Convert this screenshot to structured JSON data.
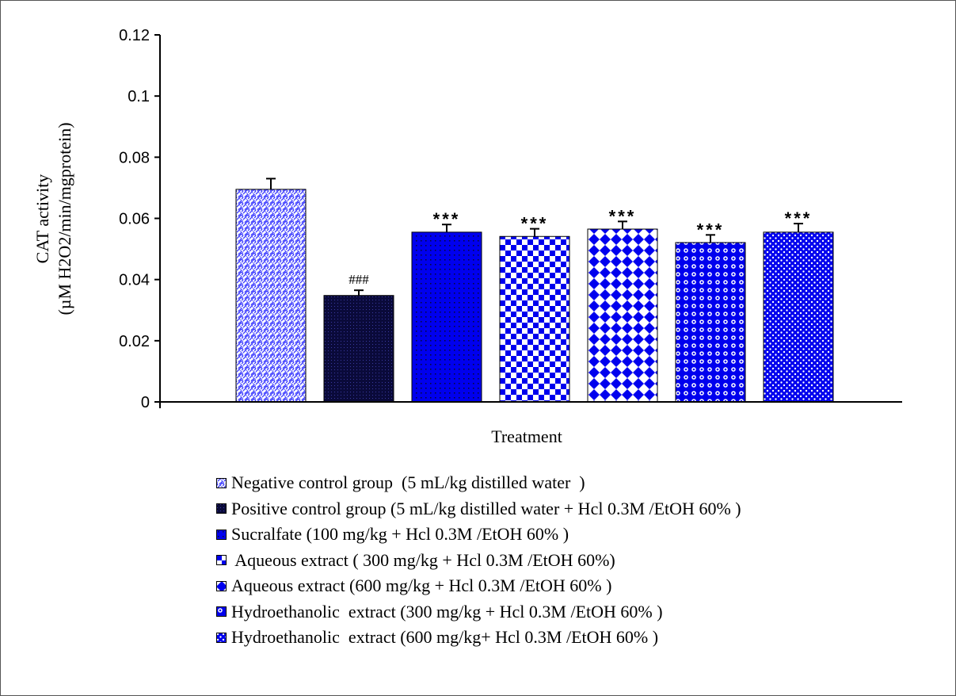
{
  "chart_data": {
    "type": "bar",
    "xlabel": "Treatment",
    "ylabel_line1": "CAT activity",
    "ylabel_line2": "(µM H2O2/min/mgprotein)",
    "ylim": [
      0,
      0.12
    ],
    "yticks": [
      "0",
      "0.02",
      "0.04",
      "0.06",
      "0.08",
      "0.1",
      "0.12"
    ],
    "grid": false,
    "legend_position": "bottom",
    "series": [
      {
        "name": "Negative control group  (5 mL/kg distilled water  )",
        "value": 0.0695,
        "error": 0.0035,
        "annotation": "",
        "pattern": "weave",
        "color": "#3b3bff"
      },
      {
        "name": "Positive control group (5 mL/kg distilled water + Hcl 0.3M /EtOH 60% )",
        "value": 0.0348,
        "error": 0.0017,
        "annotation": "###",
        "pattern": "dense-dots",
        "color": "#0a0a3a"
      },
      {
        "name": "Sucralfate (100 mg/kg + Hcl 0.3M /EtOH 60% )",
        "value": 0.0555,
        "error": 0.0025,
        "annotation": "***",
        "pattern": "fine-grid",
        "color": "#0000ee"
      },
      {
        "name": " Aqueous extract ( 300 mg/kg + Hcl 0.3M /EtOH 60%)",
        "value": 0.0541,
        "error": 0.0025,
        "annotation": "***",
        "pattern": "checker",
        "color": "#0000ee"
      },
      {
        "name": "Aqueous extract (600 mg/kg + Hcl 0.3M /EtOH 60% )",
        "value": 0.0565,
        "error": 0.0025,
        "annotation": "***",
        "pattern": "diamonds",
        "color": "#0000ee"
      },
      {
        "name": "Hydroethanolic  extract (300 mg/kg + Hcl 0.3M /EtOH 60% )",
        "value": 0.0521,
        "error": 0.0025,
        "annotation": "***",
        "pattern": "circles",
        "color": "#0000ee"
      },
      {
        "name": "Hydroethanolic  extract (600 mg/kg+ Hcl 0.3M /EtOH 60% )",
        "value": 0.0555,
        "error": 0.0028,
        "annotation": "***",
        "pattern": "small-dots",
        "color": "#0000ee"
      }
    ]
  }
}
